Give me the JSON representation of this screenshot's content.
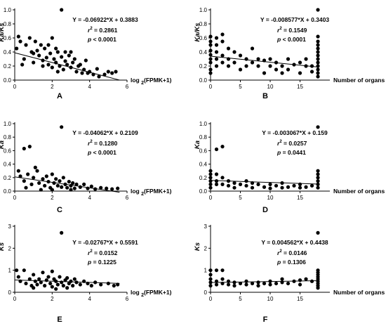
{
  "chart_data": [
    {
      "panel": "A",
      "type": "scatter",
      "ylabel": "Ka/Ks",
      "xlabel": "log 2(FPMK+1)",
      "xlabel_parts": {
        "pre": "log ",
        "sub": "2",
        "post": "(FPMK+1)"
      },
      "xlim": [
        0,
        6
      ],
      "ylim": [
        0,
        1.0
      ],
      "xticks": [
        0,
        2,
        4,
        6
      ],
      "yticks": [
        0.0,
        0.2,
        0.4,
        0.6,
        0.8,
        1.0
      ],
      "equation": "Y = -0.06922*X + 0.3883",
      "r2_label": "r",
      "r2_sup": "2",
      "r2_value": " = 0.2861",
      "p_label": "p",
      "p_value": " < 0.0001",
      "fit": {
        "slope": -0.06922,
        "intercept": 0.3883,
        "x_range": [
          0,
          5.6
        ]
      },
      "points": [
        [
          0.1,
          0.45
        ],
        [
          0.2,
          0.62
        ],
        [
          0.3,
          0.55
        ],
        [
          0.5,
          0.3
        ],
        [
          0.6,
          0.5
        ],
        [
          0.8,
          0.6
        ],
        [
          0.9,
          0.4
        ],
        [
          1.0,
          0.25
        ],
        [
          1.1,
          0.55
        ],
        [
          1.2,
          0.42
        ],
        [
          1.3,
          0.35
        ],
        [
          1.4,
          0.5
        ],
        [
          1.5,
          0.28
        ],
        [
          1.6,
          0.45
        ],
        [
          1.7,
          0.32
        ],
        [
          1.8,
          0.22
        ],
        [
          1.9,
          0.38
        ],
        [
          2.0,
          0.6
        ],
        [
          2.0,
          0.18
        ],
        [
          2.1,
          0.3
        ],
        [
          2.2,
          0.25
        ],
        [
          2.3,
          0.4
        ],
        [
          2.4,
          0.2
        ],
        [
          2.5,
          0.33
        ],
        [
          2.5,
          1.0
        ],
        [
          2.6,
          0.15
        ],
        [
          2.7,
          0.27
        ],
        [
          2.8,
          0.22
        ],
        [
          2.9,
          0.35
        ],
        [
          3.0,
          0.18
        ],
        [
          3.1,
          0.25
        ],
        [
          3.2,
          0.3
        ],
        [
          3.3,
          0.12
        ],
        [
          3.4,
          0.2
        ],
        [
          3.5,
          0.22
        ],
        [
          3.6,
          0.1
        ],
        [
          3.7,
          0.15
        ],
        [
          3.8,
          0.28
        ],
        [
          3.9,
          0.1
        ],
        [
          4.0,
          0.12
        ],
        [
          4.2,
          0.08
        ],
        [
          4.4,
          0.16
        ],
        [
          4.5,
          0.05
        ],
        [
          4.8,
          0.08
        ],
        [
          5.0,
          0.12
        ],
        [
          5.2,
          0.1
        ],
        [
          5.4,
          0.12
        ],
        [
          1.5,
          0.2
        ],
        [
          2.2,
          0.45
        ],
        [
          2.7,
          0.4
        ],
        [
          1.0,
          0.38
        ],
        [
          0.4,
          0.22
        ],
        [
          1.8,
          0.5
        ],
        [
          2.3,
          0.12
        ],
        [
          3.0,
          0.4
        ]
      ]
    },
    {
      "panel": "B",
      "type": "scatter",
      "ylabel": "Ka/Ks",
      "xlabel": "Number of organs",
      "xlim": [
        0,
        20
      ],
      "ylim": [
        0,
        1.0
      ],
      "xticks": [
        0,
        5,
        10,
        15
      ],
      "yticks": [
        0.0,
        0.2,
        0.4,
        0.6,
        0.8,
        1.0
      ],
      "equation": "Y = -0.008577*X + 0.3403",
      "r2_label": "r",
      "r2_sup": "2",
      "r2_value": " = 0.1549",
      "p_label": "p",
      "p_value": " < 0.0001",
      "fit": {
        "slope": -0.008577,
        "intercept": 0.3403,
        "x_range": [
          0,
          18
        ]
      },
      "points": [
        [
          0,
          0.62
        ],
        [
          0,
          0.55
        ],
        [
          0,
          0.5
        ],
        [
          0,
          0.42
        ],
        [
          0,
          0.36
        ],
        [
          0,
          0.3
        ],
        [
          0,
          0.25
        ],
        [
          0,
          0.15
        ],
        [
          0,
          0.1
        ],
        [
          1,
          0.5
        ],
        [
          1,
          0.4
        ],
        [
          1,
          0.3
        ],
        [
          1,
          0.2
        ],
        [
          1,
          0.6
        ],
        [
          2,
          0.55
        ],
        [
          2,
          0.35
        ],
        [
          2,
          0.25
        ],
        [
          2,
          0.65
        ],
        [
          3,
          0.45
        ],
        [
          3,
          0.3
        ],
        [
          3,
          0.2
        ],
        [
          4,
          0.4
        ],
        [
          4,
          0.25
        ],
        [
          5,
          0.35
        ],
        [
          5,
          0.15
        ],
        [
          6,
          0.3
        ],
        [
          6,
          0.2
        ],
        [
          7,
          0.25
        ],
        [
          7,
          0.45
        ],
        [
          8,
          0.2
        ],
        [
          8,
          0.3
        ],
        [
          9,
          0.1
        ],
        [
          9,
          0.28
        ],
        [
          10,
          0.2
        ],
        [
          10,
          0.3
        ],
        [
          11,
          0.15
        ],
        [
          11,
          0.25
        ],
        [
          12,
          0.2
        ],
        [
          12,
          0.1
        ],
        [
          13,
          0.3
        ],
        [
          13,
          0.15
        ],
        [
          14,
          0.22
        ],
        [
          15,
          0.25
        ],
        [
          15,
          0.1
        ],
        [
          16,
          0.2
        ],
        [
          16,
          0.3
        ],
        [
          17,
          0.12
        ],
        [
          17,
          0.2
        ],
        [
          18,
          1.0
        ],
        [
          18,
          0.62
        ],
        [
          18,
          0.55
        ],
        [
          18,
          0.5
        ],
        [
          18,
          0.45
        ],
        [
          18,
          0.4
        ],
        [
          18,
          0.35
        ],
        [
          18,
          0.3
        ],
        [
          18,
          0.25
        ],
        [
          18,
          0.2
        ],
        [
          18,
          0.15
        ],
        [
          18,
          0.1
        ],
        [
          18,
          0.05
        ]
      ]
    },
    {
      "panel": "C",
      "type": "scatter",
      "ylabel": "Ka",
      "xlabel": "log 2(FPMK+1)",
      "xlabel_parts": {
        "pre": "log ",
        "sub": "2",
        "post": "(FPMK+1)"
      },
      "xlim": [
        0,
        6
      ],
      "ylim": [
        0,
        1.0
      ],
      "xticks": [
        0,
        2,
        4,
        6
      ],
      "yticks": [
        0.0,
        0.2,
        0.4,
        0.6,
        0.8,
        1.0
      ],
      "equation": "Y = -0.04062*X + 0.2109",
      "r2_label": "r",
      "r2_sup": "2",
      "r2_value": " = 0.1280",
      "p_label": "p",
      "p_value": " < 0.0001",
      "fit": {
        "slope": -0.04062,
        "intercept": 0.2109,
        "x_range": [
          0,
          5.6
        ]
      },
      "points": [
        [
          0.5,
          0.63
        ],
        [
          0.8,
          0.66
        ],
        [
          0.2,
          0.3
        ],
        [
          0.3,
          0.22
        ],
        [
          0.5,
          0.15
        ],
        [
          0.7,
          0.25
        ],
        [
          0.9,
          0.1
        ],
        [
          1.0,
          0.2
        ],
        [
          1.2,
          0.3
        ],
        [
          1.3,
          0.12
        ],
        [
          1.5,
          0.18
        ],
        [
          1.6,
          0.08
        ],
        [
          1.7,
          0.22
        ],
        [
          1.8,
          0.14
        ],
        [
          1.9,
          0.05
        ],
        [
          2.0,
          0.25
        ],
        [
          2.1,
          0.12
        ],
        [
          2.2,
          0.18
        ],
        [
          2.3,
          0.08
        ],
        [
          2.4,
          0.15
        ],
        [
          2.5,
          0.95
        ],
        [
          2.5,
          0.06
        ],
        [
          2.6,
          0.2
        ],
        [
          2.7,
          0.1
        ],
        [
          2.8,
          0.05
        ],
        [
          2.9,
          0.14
        ],
        [
          3.0,
          0.08
        ],
        [
          3.1,
          0.12
        ],
        [
          3.2,
          0.04
        ],
        [
          3.3,
          0.1
        ],
        [
          3.5,
          0.06
        ],
        [
          3.7,
          0.1
        ],
        [
          3.9,
          0.04
        ],
        [
          4.1,
          0.07
        ],
        [
          4.3,
          0.03
        ],
        [
          4.6,
          0.05
        ],
        [
          4.9,
          0.04
        ],
        [
          5.2,
          0.03
        ],
        [
          5.5,
          0.04
        ],
        [
          1.1,
          0.35
        ],
        [
          0.6,
          0.05
        ],
        [
          1.4,
          0.02
        ],
        [
          2.0,
          0.02
        ],
        [
          3.0,
          0.02
        ]
      ]
    },
    {
      "panel": "D",
      "type": "scatter",
      "ylabel": "Ka",
      "xlabel": "Number of organs",
      "xlim": [
        0,
        20
      ],
      "ylim": [
        0,
        1.0
      ],
      "xticks": [
        0,
        5,
        10,
        15
      ],
      "yticks": [
        0.0,
        0.2,
        0.4,
        0.6,
        0.8,
        1.0
      ],
      "equation": "Y = -0.003067*X + 0.159",
      "r2_label": "r",
      "r2_sup": "2",
      "r2_value": " = 0.0257",
      "p_label": "p",
      "p_value": " = 0.0441",
      "fit": {
        "slope": -0.003067,
        "intercept": 0.159,
        "x_range": [
          0,
          18
        ]
      },
      "points": [
        [
          0,
          0.3
        ],
        [
          0,
          0.25
        ],
        [
          0,
          0.2
        ],
        [
          0,
          0.15
        ],
        [
          0,
          0.1
        ],
        [
          0,
          0.05
        ],
        [
          1,
          0.62
        ],
        [
          1,
          0.25
        ],
        [
          1,
          0.15
        ],
        [
          1,
          0.1
        ],
        [
          2,
          0.66
        ],
        [
          2,
          0.2
        ],
        [
          2,
          0.1
        ],
        [
          3,
          0.15
        ],
        [
          3,
          0.08
        ],
        [
          4,
          0.12
        ],
        [
          4,
          0.05
        ],
        [
          5,
          0.1
        ],
        [
          6,
          0.08
        ],
        [
          6,
          0.15
        ],
        [
          7,
          0.05
        ],
        [
          7,
          0.12
        ],
        [
          8,
          0.1
        ],
        [
          9,
          0.06
        ],
        [
          10,
          0.1
        ],
        [
          10,
          0.04
        ],
        [
          11,
          0.08
        ],
        [
          12,
          0.05
        ],
        [
          12,
          0.12
        ],
        [
          13,
          0.06
        ],
        [
          14,
          0.08
        ],
        [
          15,
          0.05
        ],
        [
          15,
          0.1
        ],
        [
          16,
          0.06
        ],
        [
          17,
          0.08
        ],
        [
          18,
          0.95
        ],
        [
          18,
          0.3
        ],
        [
          18,
          0.25
        ],
        [
          18,
          0.2
        ],
        [
          18,
          0.15
        ],
        [
          18,
          0.1
        ],
        [
          18,
          0.05
        ]
      ]
    },
    {
      "panel": "E",
      "type": "scatter",
      "ylabel": "Ks",
      "xlabel": "log 2(FPMK+1)",
      "xlabel_parts": {
        "pre": "log ",
        "sub": "2",
        "post": "(FPMK+1)"
      },
      "xlim": [
        0,
        6
      ],
      "ylim": [
        0,
        3
      ],
      "xticks": [
        0,
        2,
        4,
        6
      ],
      "yticks": [
        0,
        1,
        2,
        3
      ],
      "equation": "Y = -0.02767*X + 0.5591",
      "r2_label": "r",
      "r2_sup": "2",
      "r2_value": " = 0.0152",
      "p_label": "p",
      "p_value": " = 0.1225",
      "fit": {
        "slope": -0.02767,
        "intercept": 0.5591,
        "x_range": [
          0,
          5.6
        ]
      },
      "points": [
        [
          0.1,
          1.0
        ],
        [
          0.2,
          0.7
        ],
        [
          0.3,
          0.5
        ],
        [
          0.5,
          1.0
        ],
        [
          0.6,
          0.4
        ],
        [
          0.8,
          0.6
        ],
        [
          0.9,
          0.3
        ],
        [
          1.0,
          0.8
        ],
        [
          1.1,
          0.5
        ],
        [
          1.2,
          0.35
        ],
        [
          1.3,
          0.6
        ],
        [
          1.4,
          0.45
        ],
        [
          1.5,
          0.9
        ],
        [
          1.6,
          0.3
        ],
        [
          1.7,
          0.55
        ],
        [
          1.8,
          0.7
        ],
        [
          1.9,
          0.4
        ],
        [
          2.0,
          0.95
        ],
        [
          2.0,
          0.25
        ],
        [
          2.1,
          0.6
        ],
        [
          2.2,
          0.5
        ],
        [
          2.3,
          0.35
        ],
        [
          2.4,
          0.7
        ],
        [
          2.5,
          2.7
        ],
        [
          2.5,
          0.45
        ],
        [
          2.6,
          0.3
        ],
        [
          2.7,
          0.55
        ],
        [
          2.8,
          0.65
        ],
        [
          2.9,
          0.4
        ],
        [
          3.0,
          0.5
        ],
        [
          3.1,
          0.3
        ],
        [
          3.2,
          0.6
        ],
        [
          3.3,
          0.45
        ],
        [
          3.5,
          0.35
        ],
        [
          3.7,
          0.5
        ],
        [
          3.9,
          0.4
        ],
        [
          4.1,
          0.3
        ],
        [
          4.3,
          0.45
        ],
        [
          4.6,
          0.35
        ],
        [
          5.0,
          0.4
        ],
        [
          5.3,
          0.3
        ],
        [
          5.5,
          0.35
        ],
        [
          1.0,
          0.2
        ],
        [
          2.2,
          0.15
        ],
        [
          2.8,
          0.2
        ]
      ]
    },
    {
      "panel": "F",
      "type": "scatter",
      "ylabel": "Ks",
      "xlabel": "Number of organs",
      "xlim": [
        0,
        20
      ],
      "ylim": [
        0,
        3
      ],
      "xticks": [
        0,
        5,
        10,
        15
      ],
      "yticks": [
        0,
        1,
        2,
        3
      ],
      "equation": "Y = 0.004562*X + 0.4438",
      "r2_label": "r",
      "r2_sup": "2",
      "r2_value": " = 0.0146",
      "p_label": "p",
      "p_value": " = 0.1306",
      "fit": {
        "slope": 0.004562,
        "intercept": 0.4438,
        "x_range": [
          0,
          18
        ]
      },
      "points": [
        [
          0,
          1.0
        ],
        [
          0,
          0.8
        ],
        [
          0,
          0.6
        ],
        [
          0,
          0.45
        ],
        [
          0,
          0.3
        ],
        [
          1,
          1.0
        ],
        [
          1,
          0.5
        ],
        [
          1,
          0.35
        ],
        [
          2,
          1.0
        ],
        [
          2,
          0.6
        ],
        [
          2,
          0.4
        ],
        [
          3,
          0.5
        ],
        [
          3,
          0.35
        ],
        [
          4,
          0.45
        ],
        [
          4,
          0.3
        ],
        [
          5,
          0.4
        ],
        [
          6,
          0.5
        ],
        [
          6,
          0.35
        ],
        [
          7,
          0.4
        ],
        [
          8,
          0.45
        ],
        [
          8,
          0.3
        ],
        [
          9,
          0.4
        ],
        [
          10,
          0.5
        ],
        [
          10,
          0.35
        ],
        [
          11,
          0.4
        ],
        [
          12,
          0.45
        ],
        [
          12,
          0.6
        ],
        [
          13,
          0.4
        ],
        [
          14,
          0.5
        ],
        [
          15,
          0.55
        ],
        [
          15,
          0.35
        ],
        [
          16,
          0.6
        ],
        [
          17,
          0.5
        ],
        [
          18,
          2.7
        ],
        [
          18,
          1.0
        ],
        [
          18,
          0.9
        ],
        [
          18,
          0.8
        ],
        [
          18,
          0.7
        ],
        [
          18,
          0.6
        ],
        [
          18,
          0.5
        ],
        [
          18,
          0.4
        ],
        [
          18,
          0.3
        ],
        [
          18,
          0.2
        ]
      ]
    }
  ]
}
